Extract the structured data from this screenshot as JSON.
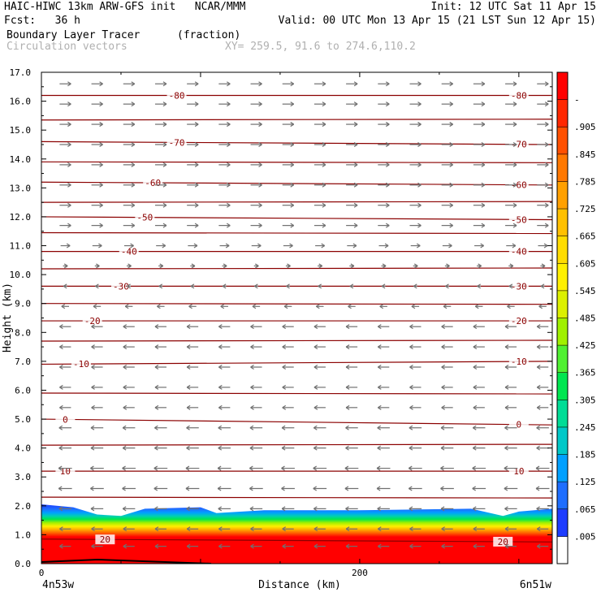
{
  "header": {
    "line1_left": "HAIC-HIWC 13km ARW-GFS init   NCAR/MMM",
    "line1_right": "Init: 12 UTC Sat 11 Apr 15",
    "line2_left": "Fcst:   36 h",
    "line2_right": "Valid: 00 UTC Mon 13 Apr 15 (21 LST Sun 12 Apr 15)",
    "field1": "Boundary Layer Tracer",
    "field1_units": "(fraction)",
    "field2": "Circulation vectors",
    "xy": "XY= 259.5, 91.6 to 274.6,110.2"
  },
  "chart_data": {
    "type": "heatmap",
    "title": "Boundary Layer Tracer",
    "xlabel": "Distance (km)",
    "ylabel": "Height (km)",
    "xlim": [
      0,
      321
    ],
    "ylim": [
      0,
      17
    ],
    "x_ticks": [
      {
        "value": 0,
        "label": "0"
      },
      {
        "value": 200,
        "label": "200"
      }
    ],
    "x_endpoints": {
      "left": "4n53w",
      "right": "6n51w"
    },
    "y_ticks": [
      "0.0",
      "1.0",
      "2.0",
      "3.0",
      "4.0",
      "5.0",
      "6.0",
      "7.0",
      "8.0",
      "9.0",
      "10.0",
      "11.0",
      "12.0",
      "13.0",
      "14.0",
      "15.0",
      "16.0",
      "17.0"
    ],
    "colorbar": {
      "labels": [
        ".005",
        ".065",
        ".125",
        ".185",
        ".245",
        ".305",
        ".365",
        ".425",
        ".485",
        ".545",
        ".605",
        ".665",
        ".725",
        ".785",
        ".845",
        ".905",
        "-"
      ],
      "colors": [
        "#ffffff",
        "#1e3cff",
        "#1e6eff",
        "#00a0ff",
        "#00c8c8",
        "#00dc96",
        "#00e650",
        "#50f032",
        "#a0f000",
        "#dcf000",
        "#fff000",
        "#ffdc00",
        "#ffc000",
        "#ffa000",
        "#ff7800",
        "#ff5000",
        "#ff2800",
        "#ff0000"
      ]
    },
    "bl_top_km": [
      {
        "x": 0,
        "z": 2.05
      },
      {
        "x": 20,
        "z": 1.95
      },
      {
        "x": 35,
        "z": 1.7
      },
      {
        "x": 50,
        "z": 1.65
      },
      {
        "x": 65,
        "z": 1.9
      },
      {
        "x": 100,
        "z": 1.95
      },
      {
        "x": 110,
        "z": 1.75
      },
      {
        "x": 140,
        "z": 1.85
      },
      {
        "x": 200,
        "z": 1.85
      },
      {
        "x": 270,
        "z": 1.9
      },
      {
        "x": 290,
        "z": 1.65
      },
      {
        "x": 300,
        "z": 1.8
      },
      {
        "x": 321,
        "z": 1.9
      }
    ],
    "temperature_contours": [
      {
        "label": "-80",
        "z_left": 16.2,
        "z_right": 16.2,
        "label_x": [
          85,
          300
        ]
      },
      {
        "label": "-70",
        "z_left": 14.6,
        "z_right": 14.5,
        "label_x": [
          85,
          300
        ]
      },
      {
        "label": "-60",
        "z_left": 13.2,
        "z_right": 13.1,
        "label_x": [
          70,
          300
        ]
      },
      {
        "label": "-50",
        "z_left": 12.0,
        "z_right": 11.9,
        "label_x": [
          65,
          300
        ]
      },
      {
        "label": "-40",
        "z_left": 10.8,
        "z_right": 10.8,
        "label_x": [
          55,
          300
        ]
      },
      {
        "label": "-30",
        "z_left": 9.6,
        "z_right": 9.6,
        "label_x": [
          50,
          300
        ]
      },
      {
        "label": "-20",
        "z_left": 8.4,
        "z_right": 8.4,
        "label_x": [
          32,
          300
        ]
      },
      {
        "label": "-10",
        "z_left": 6.9,
        "z_right": 7.0,
        "label_x": [
          25,
          300
        ]
      },
      {
        "label": "0",
        "z_left": 5.0,
        "z_right": 4.8,
        "label_x": [
          15,
          300
        ]
      },
      {
        "label": "10",
        "z_left": 3.2,
        "z_right": 3.2,
        "label_x": [
          15,
          300
        ]
      },
      {
        "label": "20",
        "z_left": 0.85,
        "z_right": 0.75,
        "label_x": [
          40,
          290
        ]
      }
    ],
    "unlabeled_contours_km": [
      15.35,
      13.9,
      12.5,
      11.45,
      10.2,
      9.0,
      7.7,
      5.9,
      4.1,
      2.3
    ],
    "wind_vectors": {
      "description": "easterly flow below ~9 km, westerly flow above ~10 km",
      "levels": [
        {
          "z": 16.6,
          "u": 1
        },
        {
          "z": 15.9,
          "u": 1
        },
        {
          "z": 15.2,
          "u": 1
        },
        {
          "z": 14.5,
          "u": 1
        },
        {
          "z": 13.8,
          "u": 1
        },
        {
          "z": 13.1,
          "u": 1
        },
        {
          "z": 12.4,
          "u": 1
        },
        {
          "z": 11.7,
          "u": 1
        },
        {
          "z": 11.0,
          "u": 0.8
        },
        {
          "z": 10.3,
          "u": 0.3
        },
        {
          "z": 9.6,
          "u": -0.2
        },
        {
          "z": 8.9,
          "u": -0.6
        },
        {
          "z": 8.2,
          "u": -1
        },
        {
          "z": 7.5,
          "u": -1
        },
        {
          "z": 6.8,
          "u": -1
        },
        {
          "z": 6.1,
          "u": -1
        },
        {
          "z": 5.4,
          "u": -1
        },
        {
          "z": 4.7,
          "u": -1.1
        },
        {
          "z": 4.0,
          "u": -1.1
        },
        {
          "z": 3.3,
          "u": -1.2
        },
        {
          "z": 2.6,
          "u": -1.2
        },
        {
          "z": 1.9,
          "u": -1.1
        },
        {
          "z": 1.2,
          "u": -1.0
        },
        {
          "z": 0.6,
          "u": -1.0
        }
      ]
    }
  }
}
